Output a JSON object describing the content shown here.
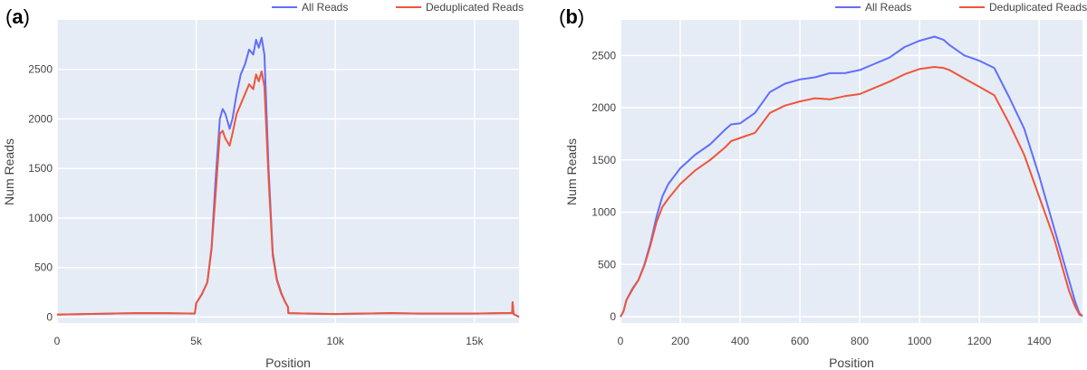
{
  "colors": {
    "all_reads": "#636efa",
    "dedup_reads": "#ef553b",
    "plot_bg": "#e5ecf6",
    "grid": "#ffffff"
  },
  "chart_data": [
    {
      "type": "line",
      "panel_label_open": "(",
      "panel_label_letter": "a",
      "panel_label_close": ")",
      "xlabel": "Position",
      "ylabel": "Num Reads",
      "xlim": [
        0,
        16600
      ],
      "ylim": [
        -60,
        3000
      ],
      "x_ticks": [
        0,
        5000,
        10000,
        15000
      ],
      "x_tick_labels": [
        "0",
        "5k",
        "10k",
        "15k"
      ],
      "y_ticks": [
        0,
        500,
        1000,
        1500,
        2000,
        2500
      ],
      "y_tick_labels": [
        "0",
        "500",
        "1000",
        "1500",
        "2000",
        "2500"
      ],
      "grid": true,
      "legend_position": "top-right",
      "series": [
        {
          "name": "All Reads",
          "x": [
            0,
            1000,
            2000,
            3000,
            4000,
            4950,
            5000,
            5200,
            5400,
            5550,
            5700,
            5850,
            5950,
            6050,
            6200,
            6300,
            6450,
            6600,
            6750,
            6900,
            7050,
            7150,
            7250,
            7350,
            7450,
            7600,
            7750,
            7900,
            8050,
            8200,
            8300,
            8310,
            9000,
            10000,
            11000,
            12000,
            13000,
            14000,
            15000,
            16000,
            16350,
            16370,
            16400,
            16600
          ],
          "y": [
            25,
            30,
            35,
            40,
            38,
            35,
            140,
            230,
            350,
            700,
            1400,
            2000,
            2100,
            2050,
            1900,
            2000,
            2250,
            2450,
            2550,
            2700,
            2650,
            2800,
            2720,
            2820,
            2650,
            1500,
            650,
            380,
            250,
            150,
            100,
            40,
            35,
            30,
            35,
            40,
            35,
            35,
            35,
            40,
            40,
            150,
            30,
            0
          ]
        },
        {
          "name": "Deduplicated Reads",
          "x": [
            0,
            1000,
            2000,
            3000,
            4000,
            4950,
            5000,
            5200,
            5400,
            5550,
            5700,
            5850,
            5950,
            6050,
            6200,
            6300,
            6450,
            6600,
            6750,
            6900,
            7050,
            7150,
            7250,
            7350,
            7450,
            7600,
            7750,
            7900,
            8050,
            8200,
            8300,
            8310,
            9000,
            10000,
            11000,
            12000,
            13000,
            14000,
            15000,
            16000,
            16350,
            16370,
            16400,
            16600
          ],
          "y": [
            25,
            30,
            35,
            40,
            38,
            35,
            140,
            230,
            350,
            680,
            1250,
            1850,
            1880,
            1800,
            1730,
            1850,
            2050,
            2150,
            2250,
            2350,
            2300,
            2450,
            2380,
            2480,
            2330,
            1400,
            620,
            370,
            240,
            150,
            100,
            40,
            35,
            30,
            35,
            40,
            35,
            35,
            35,
            40,
            40,
            150,
            30,
            0
          ]
        }
      ]
    },
    {
      "type": "line",
      "panel_label_open": "(",
      "panel_label_letter": "b",
      "panel_label_close": ")",
      "xlabel": "Position",
      "ylabel": "Num Reads",
      "xlim": [
        0,
        1545
      ],
      "ylim": [
        -60,
        2840
      ],
      "x_ticks": [
        0,
        200,
        400,
        600,
        800,
        1000,
        1200,
        1400
      ],
      "x_tick_labels": [
        "0",
        "200",
        "400",
        "600",
        "800",
        "1000",
        "1200",
        "1400"
      ],
      "y_ticks": [
        0,
        500,
        1000,
        1500,
        2000,
        2500
      ],
      "y_tick_labels": [
        "0",
        "500",
        "1000",
        "1500",
        "2000",
        "2500"
      ],
      "grid": true,
      "legend_position": "top-right",
      "series": [
        {
          "name": "All Reads",
          "x": [
            0,
            10,
            20,
            40,
            60,
            80,
            100,
            120,
            140,
            160,
            200,
            250,
            300,
            350,
            370,
            400,
            450,
            500,
            550,
            600,
            650,
            700,
            750,
            800,
            850,
            900,
            950,
            1000,
            1050,
            1080,
            1100,
            1150,
            1200,
            1250,
            1300,
            1350,
            1400,
            1450,
            1500,
            1520,
            1535,
            1545
          ],
          "y": [
            0,
            50,
            160,
            270,
            350,
            500,
            700,
            950,
            1150,
            1270,
            1420,
            1550,
            1650,
            1790,
            1840,
            1850,
            1950,
            2150,
            2230,
            2270,
            2290,
            2330,
            2330,
            2360,
            2420,
            2480,
            2580,
            2640,
            2680,
            2650,
            2600,
            2500,
            2450,
            2380,
            2100,
            1800,
            1350,
            850,
            350,
            150,
            30,
            10
          ]
        },
        {
          "name": "Deduplicated Reads",
          "x": [
            0,
            10,
            20,
            40,
            60,
            80,
            100,
            120,
            140,
            160,
            200,
            250,
            300,
            350,
            370,
            400,
            450,
            500,
            550,
            600,
            650,
            700,
            750,
            800,
            850,
            900,
            950,
            1000,
            1050,
            1080,
            1100,
            1150,
            1200,
            1250,
            1300,
            1350,
            1400,
            1450,
            1500,
            1520,
            1535,
            1545
          ],
          "y": [
            0,
            50,
            160,
            260,
            350,
            490,
            680,
            900,
            1050,
            1130,
            1270,
            1400,
            1500,
            1620,
            1680,
            1710,
            1760,
            1950,
            2020,
            2060,
            2090,
            2080,
            2110,
            2130,
            2190,
            2250,
            2320,
            2370,
            2390,
            2380,
            2360,
            2280,
            2200,
            2120,
            1850,
            1550,
            1150,
            750,
            250,
            100,
            20,
            5
          ]
        }
      ]
    }
  ]
}
